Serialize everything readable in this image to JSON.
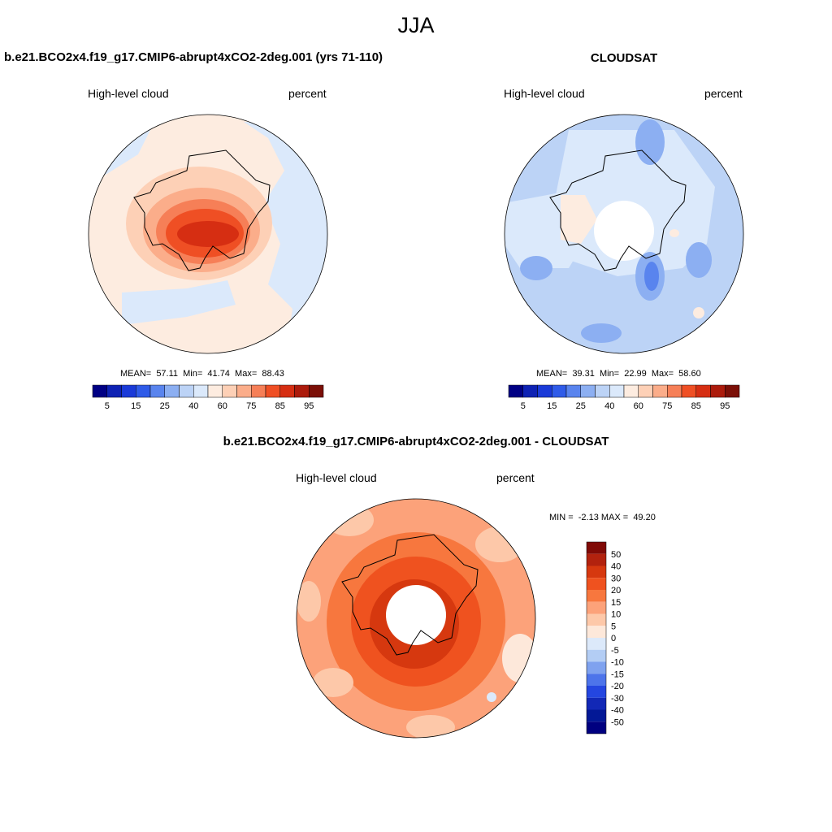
{
  "main_title": "JJA",
  "chart_data": [
    {
      "type": "heatmap",
      "projection": "south-polar-stereographic",
      "title": "b.e21.BCO2x4.f19_g17.CMIP6-abrupt4xCO2-2deg.001 (yrs 71-110)",
      "variable_label": "High-level cloud",
      "units_label": "percent",
      "stats_text": "MEAN=  57.11  Min=  41.74  Max=  88.43",
      "mean": 57.11,
      "min": 41.74,
      "max": 88.43,
      "colorbar_orientation": "horizontal",
      "colorbar_ticks": [
        "5",
        "15",
        "25",
        "40",
        "60",
        "75",
        "85",
        "95"
      ],
      "colorbar_levels": [
        5,
        10,
        15,
        20,
        25,
        30,
        40,
        50,
        60,
        65,
        75,
        80,
        85,
        90,
        95
      ],
      "colorbar_colors": [
        "#000084",
        "#0e22b4",
        "#1a3ad8",
        "#2f5be8",
        "#5984ee",
        "#8caff2",
        "#bcd3f6",
        "#dbe9fb",
        "#fdece0",
        "#fdd0b6",
        "#fbad8a",
        "#f67f57",
        "#ef4f24",
        "#d62e12",
        "#ac1b0c",
        "#7b0f07"
      ],
      "field_description": "high values (70-88) over East Antarctic interior; ~55-60 over ocean"
    },
    {
      "type": "heatmap",
      "projection": "south-polar-stereographic",
      "title": "CLOUDSAT",
      "variable_label": "High-level cloud",
      "units_label": "percent",
      "stats_text": "MEAN=  39.31  Min=  22.99  Max=  58.60",
      "mean": 39.31,
      "min": 22.99,
      "max": 58.6,
      "colorbar_orientation": "horizontal",
      "colorbar_ticks": [
        "5",
        "15",
        "25",
        "40",
        "60",
        "75",
        "85",
        "95"
      ],
      "colorbar_levels": [
        5,
        10,
        15,
        20,
        25,
        30,
        40,
        50,
        60,
        65,
        75,
        80,
        85,
        90,
        95
      ],
      "colorbar_colors": [
        "#000084",
        "#0e22b4",
        "#1a3ad8",
        "#2f5be8",
        "#5984ee",
        "#8caff2",
        "#bcd3f6",
        "#dbe9fb",
        "#fdece0",
        "#fdd0b6",
        "#fbad8a",
        "#f67f57",
        "#ef4f24",
        "#d62e12",
        "#ac1b0c",
        "#7b0f07"
      ],
      "field_description": "mostly 30-50 percent; missing data near pole"
    },
    {
      "type": "heatmap",
      "projection": "south-polar-stereographic",
      "title": "b.e21.BCO2x4.f19_g17.CMIP6-abrupt4xCO2-2deg.001 - CLOUDSAT",
      "variable_label": "High-level cloud",
      "units_label": "percent",
      "stats_text": "MIN =  -2.13 MAX =  49.20",
      "min": -2.13,
      "max": 49.2,
      "colorbar_orientation": "vertical",
      "colorbar_ticks": [
        "50",
        "40",
        "30",
        "20",
        "15",
        "10",
        "5",
        "0",
        "-5",
        "-10",
        "-15",
        "-20",
        "-30",
        "-40",
        "-50"
      ],
      "colorbar_colors": [
        "#800a06",
        "#b2220e",
        "#d6380f",
        "#ef521f",
        "#f7773e",
        "#fca27a",
        "#fdc8a9",
        "#fde8da",
        "#dce9fa",
        "#b3cdf4",
        "#7fa2ef",
        "#4d74ea",
        "#2446e0",
        "#1228b6",
        "#031896",
        "#000080"
      ],
      "field_description": "positive difference almost everywhere; largest (30-50) around Antarctic coast"
    }
  ]
}
